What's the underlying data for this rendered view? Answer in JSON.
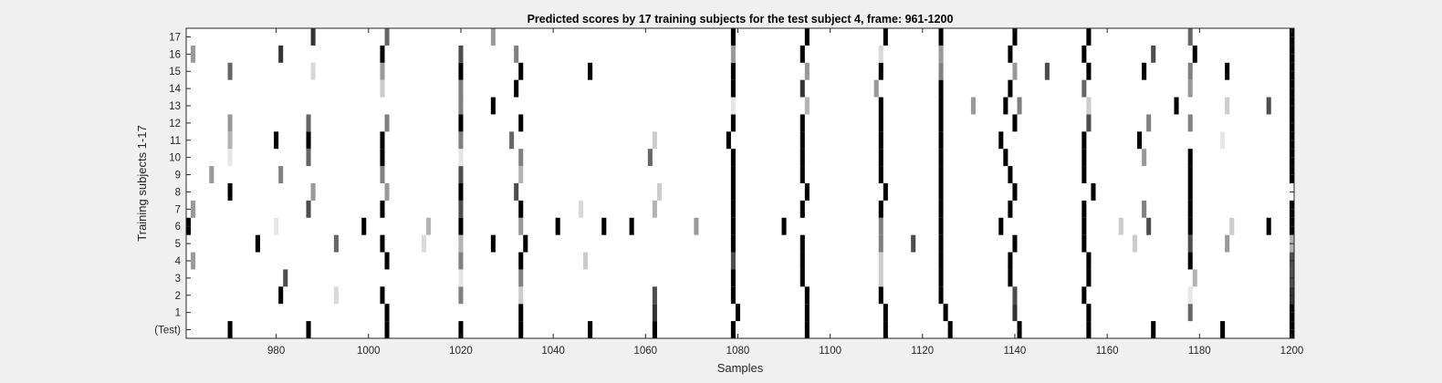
{
  "chart_data": {
    "type": "heatmap",
    "title": "Predicted scores by 17 training subjects for the test subject 4, frame: 961-1200",
    "xlabel": "Samples",
    "ylabel": "Training subjects 1-17",
    "xlim": [
      961,
      1200
    ],
    "x_ticks": [
      980,
      1000,
      1020,
      1040,
      1060,
      1080,
      1100,
      1120,
      1140,
      1160,
      1180,
      1200
    ],
    "y_tick_labels": [
      "(Test)",
      "1",
      "2",
      "3",
      "4",
      "5",
      "6",
      "7",
      "8",
      "9",
      "10",
      "11",
      "12",
      "13",
      "14",
      "15",
      "16",
      "17"
    ],
    "colormap": "gray (0 = black, 1 = white)",
    "grid": false,
    "rows": [
      {
        "label": "(Test)",
        "cells": [
          [
            970,
            0
          ],
          [
            987,
            0
          ],
          [
            1004,
            0
          ],
          [
            1020,
            0
          ],
          [
            1033,
            0
          ],
          [
            1048,
            0
          ],
          [
            1062,
            0
          ],
          [
            1079,
            0
          ],
          [
            1095,
            0
          ],
          [
            1112,
            0
          ],
          [
            1126,
            0
          ],
          [
            1141,
            0
          ],
          [
            1156,
            0
          ],
          [
            1170,
            0
          ],
          [
            1185,
            0
          ],
          [
            1200,
            0
          ]
        ]
      },
      {
        "label": "1",
        "cells": [
          [
            1004,
            0
          ],
          [
            1033,
            0
          ],
          [
            1062,
            0.2
          ],
          [
            1080,
            0
          ],
          [
            1095,
            0
          ],
          [
            1112,
            0
          ],
          [
            1125,
            0
          ],
          [
            1140,
            0.2
          ],
          [
            1156,
            0
          ],
          [
            1178,
            0.4
          ],
          [
            1200,
            0
          ]
        ]
      },
      {
        "label": "2",
        "cells": [
          [
            981,
            0
          ],
          [
            993,
            0.85
          ],
          [
            1003,
            0
          ],
          [
            1020,
            0.5
          ],
          [
            1033,
            0.8
          ],
          [
            1062,
            0.3
          ],
          [
            1079,
            0
          ],
          [
            1095,
            0
          ],
          [
            1111,
            0
          ],
          [
            1124,
            0
          ],
          [
            1140,
            0.3
          ],
          [
            1155,
            0
          ],
          [
            1178,
            0.9
          ],
          [
            1200,
            0.2
          ]
        ]
      },
      {
        "label": "3",
        "cells": [
          [
            982,
            0.3
          ],
          [
            1020,
            0.9
          ],
          [
            1033,
            0.5
          ],
          [
            1079,
            0
          ],
          [
            1094,
            0
          ],
          [
            1111,
            0.8
          ],
          [
            1124,
            0
          ],
          [
            1139,
            0
          ],
          [
            1156,
            0
          ],
          [
            1179,
            0.7
          ],
          [
            1200,
            0.3
          ]
        ]
      },
      {
        "label": "4",
        "cells": [
          [
            962,
            0.6
          ],
          [
            1004,
            0
          ],
          [
            1020,
            0.5
          ],
          [
            1033,
            0
          ],
          [
            1047,
            0.8
          ],
          [
            1079,
            0.3
          ],
          [
            1094,
            0
          ],
          [
            1111,
            0.8
          ],
          [
            1124,
            0
          ],
          [
            1139,
            0
          ],
          [
            1156,
            0
          ],
          [
            1178,
            0
          ],
          [
            1200,
            0.3
          ]
        ]
      },
      {
        "label": "5",
        "cells": [
          [
            976,
            0
          ],
          [
            993,
            0.4
          ],
          [
            1003,
            0
          ],
          [
            1012,
            0.85
          ],
          [
            1020,
            0.7
          ],
          [
            1027,
            0
          ],
          [
            1034,
            0
          ],
          [
            1079,
            0
          ],
          [
            1094,
            0
          ],
          [
            1111,
            0.5
          ],
          [
            1118,
            0.3
          ],
          [
            1124,
            0
          ],
          [
            1140,
            0
          ],
          [
            1155,
            0
          ],
          [
            1166,
            0.8
          ],
          [
            1178,
            0.3
          ],
          [
            1186,
            0.6
          ],
          [
            1200,
            0.7
          ]
        ]
      },
      {
        "label": "6",
        "cells": [
          [
            961,
            0
          ],
          [
            980,
            0.9
          ],
          [
            999,
            0
          ],
          [
            1013,
            0.7
          ],
          [
            1020,
            0
          ],
          [
            1033,
            0.6
          ],
          [
            1041,
            0
          ],
          [
            1051,
            0
          ],
          [
            1057,
            0
          ],
          [
            1071,
            0.6
          ],
          [
            1079,
            0
          ],
          [
            1090,
            0
          ],
          [
            1111,
            0.5
          ],
          [
            1124,
            0
          ],
          [
            1137,
            0
          ],
          [
            1155,
            0
          ],
          [
            1163,
            0.8
          ],
          [
            1169,
            0.3
          ],
          [
            1178,
            0
          ],
          [
            1187,
            0.8
          ],
          [
            1195,
            0
          ],
          [
            1200,
            0
          ]
        ]
      },
      {
        "label": "7",
        "cells": [
          [
            962,
            0.6
          ],
          [
            987,
            0.3
          ],
          [
            1003,
            0
          ],
          [
            1020,
            0.3
          ],
          [
            1033,
            0
          ],
          [
            1046,
            0.85
          ],
          [
            1062,
            0.7
          ],
          [
            1079,
            0
          ],
          [
            1094,
            0
          ],
          [
            1111,
            0
          ],
          [
            1124,
            0
          ],
          [
            1139,
            0
          ],
          [
            1155,
            0
          ],
          [
            1168,
            0.5
          ],
          [
            1178,
            0
          ],
          [
            1200,
            0
          ]
        ]
      },
      {
        "label": "8",
        "cells": [
          [
            970,
            0
          ],
          [
            988,
            0.6
          ],
          [
            1004,
            0.6
          ],
          [
            1020,
            0
          ],
          [
            1032,
            0.3
          ],
          [
            1063,
            0.8
          ],
          [
            1079,
            0
          ],
          [
            1095,
            0
          ],
          [
            1112,
            0
          ],
          [
            1124,
            0
          ],
          [
            1140,
            0
          ],
          [
            1157,
            0
          ],
          [
            1178,
            0
          ],
          [
            1201,
            0
          ]
        ]
      },
      {
        "label": "9",
        "cells": [
          [
            966,
            0.6
          ],
          [
            981,
            0.5
          ],
          [
            1003,
            0.5
          ],
          [
            1020,
            0.3
          ],
          [
            1033,
            0.7
          ],
          [
            1079,
            0
          ],
          [
            1094,
            0
          ],
          [
            1111,
            0
          ],
          [
            1124,
            0
          ],
          [
            1139,
            0
          ],
          [
            1155,
            0
          ],
          [
            1178,
            0
          ],
          [
            1200,
            0
          ]
        ]
      },
      {
        "label": "10",
        "cells": [
          [
            970,
            0.9
          ],
          [
            987,
            0.4
          ],
          [
            1003,
            0
          ],
          [
            1020,
            0.9
          ],
          [
            1033,
            0.5
          ],
          [
            1061,
            0.4
          ],
          [
            1079,
            0
          ],
          [
            1094,
            0
          ],
          [
            1111,
            0
          ],
          [
            1124,
            0
          ],
          [
            1138,
            0
          ],
          [
            1155,
            0
          ],
          [
            1168,
            0.6
          ],
          [
            1178,
            0
          ],
          [
            1200,
            0
          ]
        ]
      },
      {
        "label": "11",
        "cells": [
          [
            970,
            0.7
          ],
          [
            980,
            0
          ],
          [
            987,
            0
          ],
          [
            1003,
            0
          ],
          [
            1020,
            0.5
          ],
          [
            1031,
            0.4
          ],
          [
            1062,
            0.8
          ],
          [
            1078,
            0
          ],
          [
            1094,
            0
          ],
          [
            1111,
            0
          ],
          [
            1124,
            0
          ],
          [
            1137,
            0
          ],
          [
            1155,
            0
          ],
          [
            1167,
            0
          ],
          [
            1185,
            0.9
          ],
          [
            1200,
            0
          ]
        ]
      },
      {
        "label": "12",
        "cells": [
          [
            970,
            0.6
          ],
          [
            987,
            0.4
          ],
          [
            1004,
            0.5
          ],
          [
            1020,
            0
          ],
          [
            1033,
            0
          ],
          [
            1079,
            0
          ],
          [
            1094,
            0
          ],
          [
            1111,
            0
          ],
          [
            1124,
            0
          ],
          [
            1140,
            0
          ],
          [
            1156,
            0.3
          ],
          [
            1169,
            0.5
          ],
          [
            1178,
            0.5
          ],
          [
            1200,
            0
          ]
        ]
      },
      {
        "label": "13",
        "cells": [
          [
            1020,
            0.5
          ],
          [
            1027,
            0
          ],
          [
            1079,
            0.9
          ],
          [
            1095,
            0.7
          ],
          [
            1111,
            0
          ],
          [
            1124,
            0
          ],
          [
            1131,
            0.6
          ],
          [
            1138,
            0
          ],
          [
            1141,
            0.5
          ],
          [
            1156,
            0.8
          ],
          [
            1175,
            0
          ],
          [
            1186,
            0.8
          ],
          [
            1195,
            0.3
          ],
          [
            1200,
            0
          ]
        ]
      },
      {
        "label": "14",
        "cells": [
          [
            1003,
            0.8
          ],
          [
            1020,
            0.5
          ],
          [
            1032,
            0
          ],
          [
            1079,
            0
          ],
          [
            1094,
            0.2
          ],
          [
            1110,
            0.6
          ],
          [
            1124,
            0
          ],
          [
            1139,
            0
          ],
          [
            1155,
            0.4
          ],
          [
            1178,
            0.6
          ],
          [
            1200,
            0
          ]
        ]
      },
      {
        "label": "15",
        "cells": [
          [
            970,
            0.4
          ],
          [
            988,
            0.85
          ],
          [
            1003,
            0.6
          ],
          [
            1020,
            0
          ],
          [
            1033,
            0
          ],
          [
            1048,
            0
          ],
          [
            1079,
            0
          ],
          [
            1095,
            0.6
          ],
          [
            1111,
            0
          ],
          [
            1124,
            0.5
          ],
          [
            1140,
            0.6
          ],
          [
            1147,
            0.3
          ],
          [
            1156,
            0
          ],
          [
            1168,
            0
          ],
          [
            1178,
            0.5
          ],
          [
            1186,
            0
          ],
          [
            1200,
            0
          ]
        ]
      },
      {
        "label": "16",
        "cells": [
          [
            962,
            0.6
          ],
          [
            981,
            0.2
          ],
          [
            1003,
            0
          ],
          [
            1020,
            0.3
          ],
          [
            1032,
            0.5
          ],
          [
            1079,
            0.6
          ],
          [
            1094,
            0
          ],
          [
            1111,
            0.85
          ],
          [
            1124,
            0.6
          ],
          [
            1139,
            0
          ],
          [
            1155,
            0
          ],
          [
            1170,
            0.3
          ],
          [
            1179,
            0
          ],
          [
            1200,
            0
          ]
        ]
      },
      {
        "label": "17",
        "cells": [
          [
            988,
            0.2
          ],
          [
            1004,
            0.4
          ],
          [
            1027,
            0.6
          ],
          [
            1079,
            0
          ],
          [
            1095,
            0
          ],
          [
            1112,
            0
          ],
          [
            1124,
            0
          ],
          [
            1140,
            0
          ],
          [
            1156,
            0
          ],
          [
            1178,
            0.4
          ],
          [
            1200,
            0
          ]
        ]
      }
    ]
  }
}
